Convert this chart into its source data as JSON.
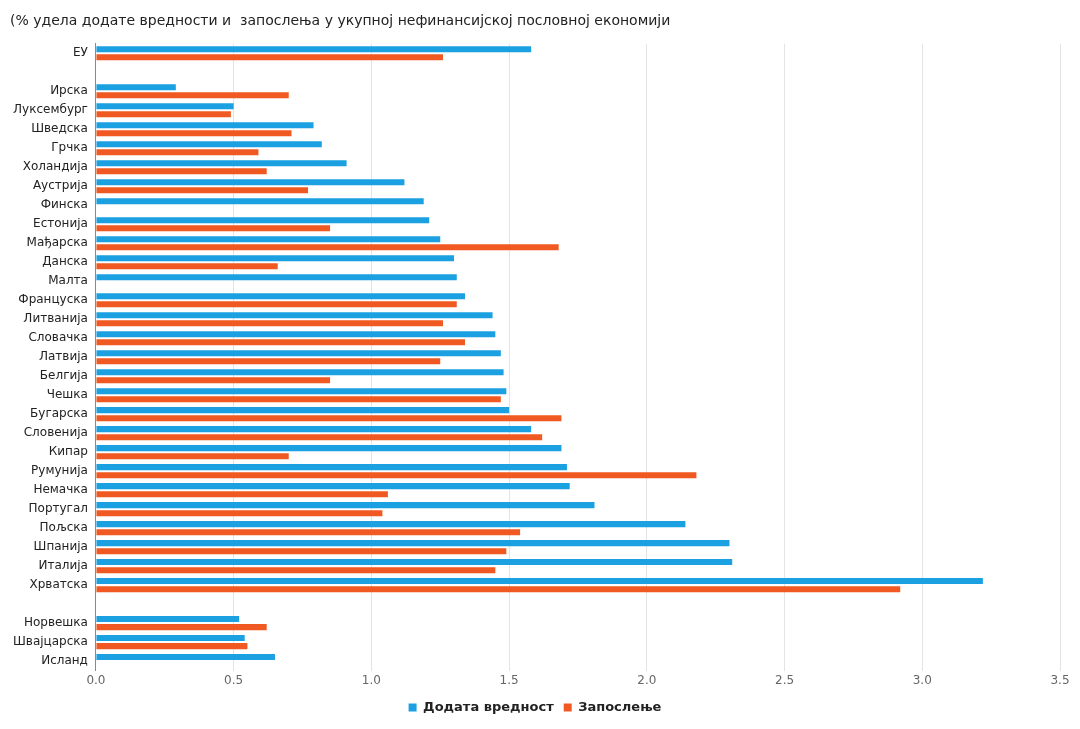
{
  "chart_data": {
    "type": "bar",
    "orientation": "horizontal",
    "subtitle": "(% удела додате вредности и  запослења у укупној нефинансијској пословној економији",
    "categories": [
      "ЕУ",
      null,
      "Ирска",
      "Луксембург",
      "Шведска",
      "Грчка",
      "Холандија",
      "Аустрија",
      "Финска",
      "Естонија",
      "Мађарска",
      "Данска",
      "Малта",
      "Француска",
      "Литванија",
      "Словачка",
      "Латвија",
      "Белгија",
      "Чешка",
      "Бугарска",
      "Словенија",
      "Кипар",
      "Румунија",
      "Немачка",
      "Португал",
      "Пољска",
      "Шпанија",
      "Италија",
      "Хрватска",
      null,
      "Норвешка",
      "Швајцарска",
      "Исланд"
    ],
    "series": [
      {
        "name": "Додата вредност",
        "color": "#1ba1e2",
        "values": [
          1.58,
          null,
          0.29,
          0.5,
          0.79,
          0.82,
          0.91,
          1.12,
          1.19,
          1.21,
          1.25,
          1.3,
          1.31,
          1.34,
          1.44,
          1.45,
          1.47,
          1.48,
          1.49,
          1.5,
          1.58,
          1.69,
          1.71,
          1.72,
          1.81,
          2.14,
          2.3,
          2.31,
          3.22,
          null,
          0.52,
          0.54,
          0.65
        ]
      },
      {
        "name": "Запослење",
        "color": "#f05a22",
        "values": [
          1.26,
          null,
          0.7,
          0.49,
          0.71,
          0.59,
          0.62,
          0.77,
          null,
          0.85,
          1.68,
          0.66,
          null,
          1.31,
          1.26,
          1.34,
          1.25,
          0.85,
          1.47,
          1.69,
          1.62,
          0.7,
          2.18,
          1.06,
          1.04,
          1.54,
          1.49,
          1.45,
          2.92,
          null,
          0.62,
          0.55,
          null
        ]
      }
    ],
    "xlim": [
      0,
      3.5
    ],
    "xticks": [
      {
        "value": 0,
        "label": "0.0"
      },
      {
        "value": 0.5,
        "label": "0.5"
      },
      {
        "value": 1,
        "label": "1.0"
      },
      {
        "value": 1.5,
        "label": "1.5"
      },
      {
        "value": 2,
        "label": "2.0"
      },
      {
        "value": 2.5,
        "label": "2.5"
      },
      {
        "value": 3,
        "label": "3.0"
      },
      {
        "value": 3.5,
        "label": "3.5"
      }
    ],
    "grid": "x",
    "legend": "bottom"
  }
}
